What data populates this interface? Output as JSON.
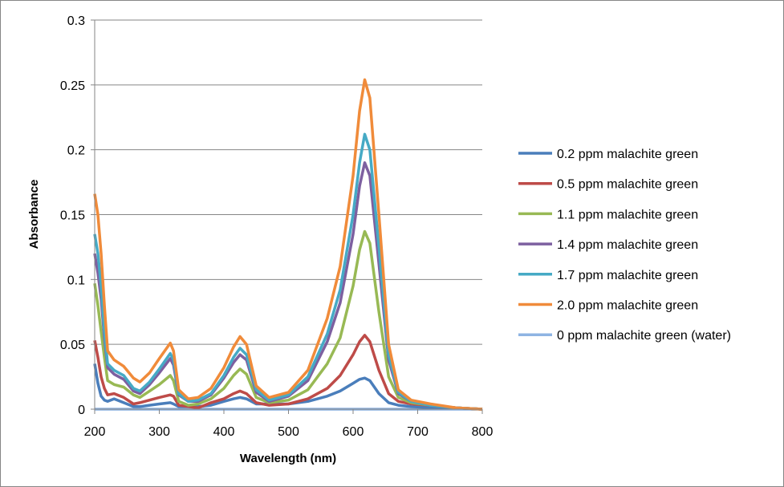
{
  "chart_data": {
    "type": "line",
    "title": "",
    "xlabel": "Wavelength (nm)",
    "ylabel": "Absorbance",
    "xlim": [
      200,
      800
    ],
    "ylim": [
      0,
      0.3
    ],
    "xticks": [
      "200",
      "300",
      "400",
      "500",
      "600",
      "700",
      "800"
    ],
    "yticks": [
      "0",
      "0.05",
      "0.1",
      "0.15",
      "0.2",
      "0.25",
      "0.3"
    ],
    "grid": "horizontal",
    "legend_position": "right",
    "x": [
      200,
      205,
      210,
      215,
      220,
      230,
      245,
      260,
      270,
      285,
      300,
      317,
      322,
      330,
      345,
      360,
      380,
      400,
      415,
      425,
      435,
      450,
      470,
      500,
      530,
      560,
      580,
      600,
      610,
      618,
      626,
      640,
      655,
      670,
      690,
      720,
      760,
      800
    ],
    "series": [
      {
        "name": "0.2 ppm malachite green",
        "color": "#4a7ebb",
        "values": [
          0.035,
          0.02,
          0.01,
          0.007,
          0.006,
          0.008,
          0.005,
          0.002,
          0.002,
          0.003,
          0.004,
          0.005,
          0.004,
          0.002,
          0.002,
          0.002,
          0.003,
          0.006,
          0.008,
          0.009,
          0.008,
          0.004,
          0.004,
          0.004,
          0.006,
          0.01,
          0.014,
          0.02,
          0.023,
          0.024,
          0.022,
          0.012,
          0.005,
          0.003,
          0.002,
          0.001,
          0.001,
          0
        ]
      },
      {
        "name": "0.5 ppm malachite green",
        "color": "#be4b48",
        "values": [
          0.053,
          0.04,
          0.025,
          0.016,
          0.011,
          0.012,
          0.009,
          0.004,
          0.005,
          0.007,
          0.009,
          0.011,
          0.01,
          0.003,
          0.002,
          0.001,
          0.005,
          0.008,
          0.012,
          0.014,
          0.012,
          0.005,
          0.003,
          0.004,
          0.008,
          0.016,
          0.026,
          0.042,
          0.052,
          0.057,
          0.052,
          0.03,
          0.012,
          0.006,
          0.004,
          0.003,
          0.001,
          0
        ]
      },
      {
        "name": "1.1 ppm malachite green",
        "color": "#98b954",
        "values": [
          0.097,
          0.08,
          0.06,
          0.04,
          0.022,
          0.019,
          0.017,
          0.011,
          0.009,
          0.014,
          0.019,
          0.026,
          0.022,
          0.006,
          0.003,
          0.004,
          0.008,
          0.016,
          0.026,
          0.031,
          0.027,
          0.009,
          0.005,
          0.007,
          0.015,
          0.035,
          0.055,
          0.095,
          0.123,
          0.137,
          0.128,
          0.075,
          0.025,
          0.009,
          0.005,
          0.003,
          0.001,
          0
        ]
      },
      {
        "name": "1.4 ppm malachite green",
        "color": "#7d60a0",
        "values": [
          0.12,
          0.105,
          0.085,
          0.055,
          0.032,
          0.027,
          0.023,
          0.014,
          0.012,
          0.019,
          0.028,
          0.039,
          0.034,
          0.011,
          0.006,
          0.006,
          0.011,
          0.024,
          0.036,
          0.042,
          0.038,
          0.013,
          0.006,
          0.01,
          0.022,
          0.052,
          0.082,
          0.135,
          0.172,
          0.19,
          0.18,
          0.112,
          0.038,
          0.012,
          0.006,
          0.003,
          0.001,
          0
        ]
      },
      {
        "name": "1.7 ppm malachite green",
        "color": "#46aac5",
        "values": [
          0.135,
          0.12,
          0.095,
          0.06,
          0.035,
          0.03,
          0.026,
          0.016,
          0.014,
          0.021,
          0.031,
          0.043,
          0.038,
          0.012,
          0.006,
          0.007,
          0.012,
          0.026,
          0.04,
          0.047,
          0.042,
          0.015,
          0.007,
          0.011,
          0.025,
          0.058,
          0.092,
          0.15,
          0.19,
          0.212,
          0.2,
          0.125,
          0.042,
          0.013,
          0.006,
          0.003,
          0.001,
          0
        ]
      },
      {
        "name": "2.0 ppm malachite green",
        "color": "#f08b3a",
        "values": [
          0.166,
          0.15,
          0.12,
          0.08,
          0.045,
          0.038,
          0.033,
          0.024,
          0.021,
          0.028,
          0.039,
          0.051,
          0.045,
          0.015,
          0.008,
          0.009,
          0.016,
          0.032,
          0.048,
          0.056,
          0.05,
          0.018,
          0.009,
          0.013,
          0.03,
          0.07,
          0.11,
          0.18,
          0.23,
          0.254,
          0.24,
          0.15,
          0.05,
          0.015,
          0.007,
          0.004,
          0.001,
          0
        ]
      },
      {
        "name": "0 ppm malachite green (water)",
        "color": "#8eb4e3",
        "values": [
          0,
          0,
          0,
          0,
          0,
          0,
          0,
          0,
          0,
          0,
          0,
          0,
          0,
          0,
          0,
          0,
          0,
          0,
          0,
          0,
          0,
          0,
          0,
          0,
          0,
          0,
          0,
          0,
          0,
          0,
          0,
          0,
          0,
          0,
          0,
          0,
          0,
          0
        ]
      }
    ]
  }
}
